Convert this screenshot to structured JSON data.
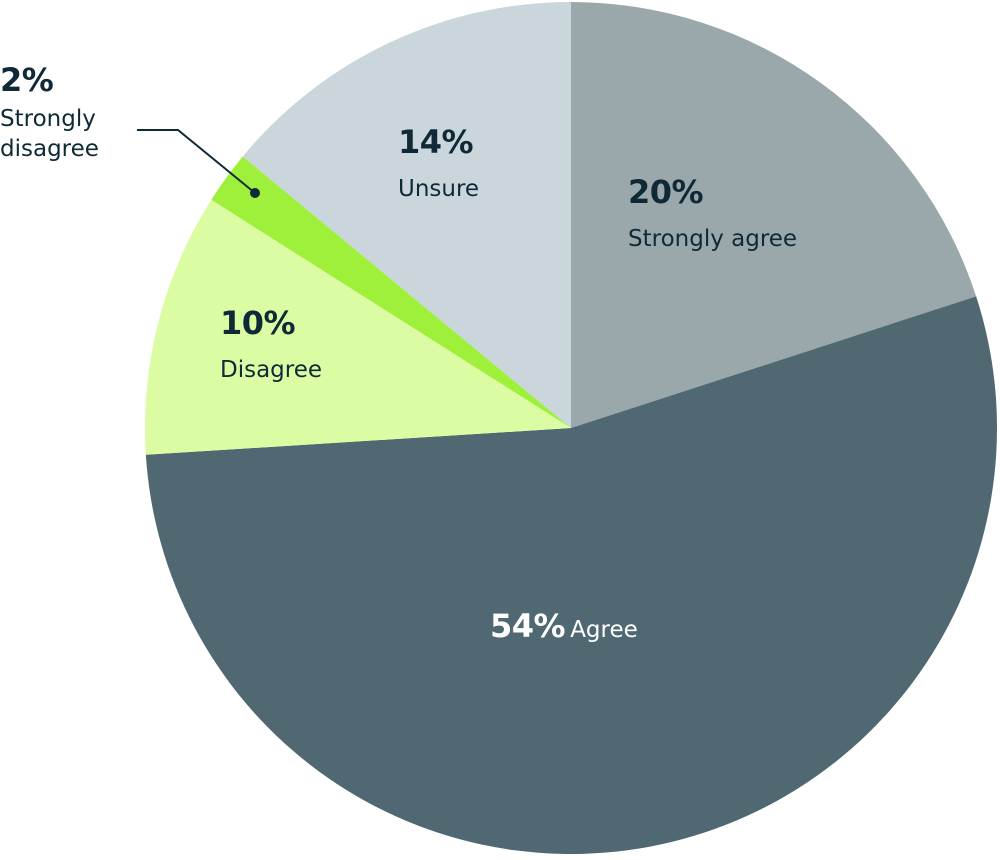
{
  "chart_data": {
    "type": "pie",
    "categories": [
      "Strongly agree",
      "Agree",
      "Disagree",
      "Strongly disagree",
      "Unsure"
    ],
    "values": [
      20,
      54,
      10,
      2,
      14
    ],
    "value_labels": [
      "20%",
      "54%",
      "10%",
      "2%",
      "14%"
    ],
    "colors": [
      "#9aa8ab",
      "#4f6872",
      "#dcfca4",
      "#9ef03a",
      "#cbd6dc"
    ]
  }
}
